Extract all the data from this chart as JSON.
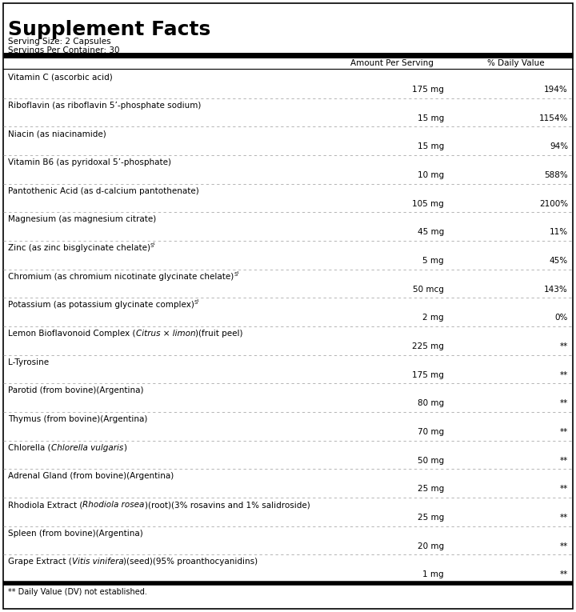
{
  "title": "Supplement Facts",
  "serving_size": "Serving Size: 2 Capsules",
  "servings_per_container": "Servings Per Container: 30",
  "header_amount": "Amount Per Serving",
  "header_dv": "% Daily Value",
  "footer": "** Daily Value (DV) not established.",
  "rows": [
    {
      "name": "Vitamin C (ascorbic acid)",
      "amount": "175 mg",
      "dv": "194%",
      "sup": false
    },
    {
      "name": "Riboflavin (as riboflavin 5’-phosphate sodium)",
      "amount": "15 mg",
      "dv": "1154%",
      "sup": false
    },
    {
      "name": "Niacin (as niacinamide)",
      "amount": "15 mg",
      "dv": "94%",
      "sup": false
    },
    {
      "name": "Vitamin B6 (as pyridoxal 5’-phosphate)",
      "amount": "10 mg",
      "dv": "588%",
      "sup": false
    },
    {
      "name": "Pantothenic Acid (as d-calcium pantothenate)",
      "amount": "105 mg",
      "dv": "2100%",
      "sup": false
    },
    {
      "name": "Magnesium (as magnesium citrate)",
      "amount": "45 mg",
      "dv": "11%",
      "sup": false
    },
    {
      "name": "Zinc (as zinc bisglycinate chelate)",
      "amount": "5 mg",
      "dv": "45%",
      "sup": true
    },
    {
      "name": "Chromium (as chromium nicotinate glycinate chelate)",
      "amount": "50 mcg",
      "dv": "143%",
      "sup": true
    },
    {
      "name": "Potassium (as potassium glycinate complex)",
      "amount": "2 mg",
      "dv": "0%",
      "sup": true
    },
    {
      "name_parts": [
        {
          "t": "Lemon Bioflavonoid Complex (",
          "i": false
        },
        {
          "t": "Citrus × limon",
          "i": true
        },
        {
          "t": ")(fruit peel)",
          "i": false
        }
      ],
      "amount": "225 mg",
      "dv": "**",
      "sup": false
    },
    {
      "name": "L-Tyrosine",
      "amount": "175 mg",
      "dv": "**",
      "sup": false
    },
    {
      "name": "Parotid (from bovine)(Argentina)",
      "amount": "80 mg",
      "dv": "**",
      "sup": false
    },
    {
      "name": "Thymus (from bovine)(Argentina)",
      "amount": "70 mg",
      "dv": "**",
      "sup": false
    },
    {
      "name_parts": [
        {
          "t": "Chlorella (",
          "i": false
        },
        {
          "t": "Chlorella vulgaris",
          "i": true
        },
        {
          "t": ")",
          "i": false
        }
      ],
      "amount": "50 mg",
      "dv": "**",
      "sup": false
    },
    {
      "name": "Adrenal Gland (from bovine)(Argentina)",
      "amount": "25 mg",
      "dv": "**",
      "sup": false
    },
    {
      "name_parts": [
        {
          "t": "Rhodiola Extract (",
          "i": false
        },
        {
          "t": "Rhodiola rosea",
          "i": true
        },
        {
          "t": ")(root)(3% rosavins and 1% salidroside)",
          "i": false
        }
      ],
      "amount": "25 mg",
      "dv": "**",
      "sup": false
    },
    {
      "name": "Spleen (from bovine)(Argentina)",
      "amount": "20 mg",
      "dv": "**",
      "sup": false
    },
    {
      "name_parts": [
        {
          "t": "Grape Extract (",
          "i": false
        },
        {
          "t": "Vitis vinifera",
          "i": true
        },
        {
          "t": ")(seed)(95% proanthocyanidins)",
          "i": false
        }
      ],
      "amount": "1 mg",
      "dv": "**",
      "sup": false
    }
  ],
  "bg_color": "#ffffff",
  "border_color": "#000000",
  "text_color": "#000000",
  "divider_color_light": "#aaaaaa",
  "font_size_title": 18,
  "font_size_serving": 7.5,
  "font_size_header": 7.5,
  "font_size_row": 7.5,
  "font_size_footer": 7.0
}
